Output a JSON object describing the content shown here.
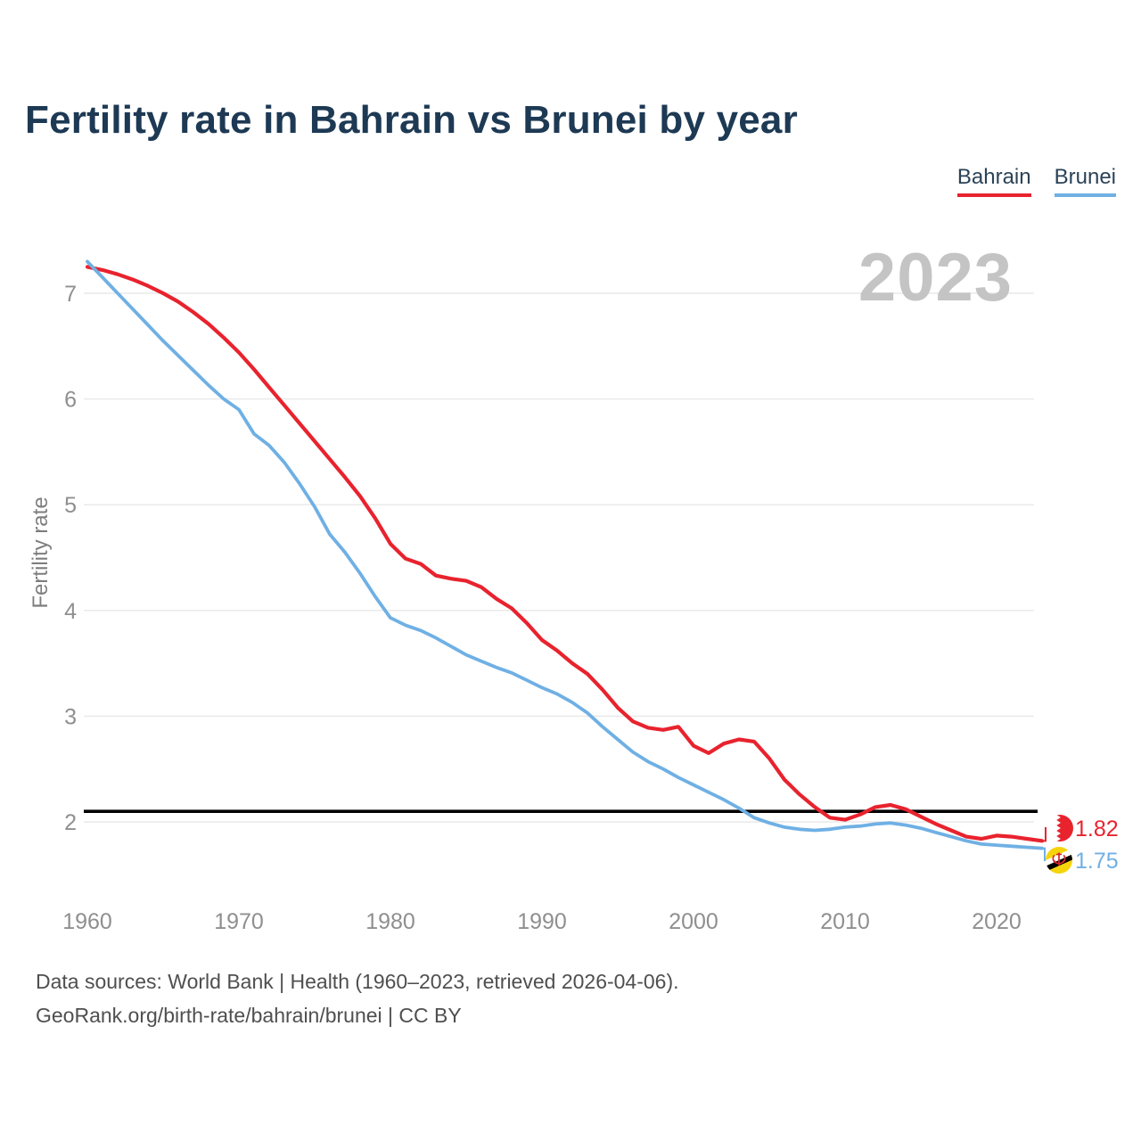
{
  "title": "Fertility rate in Bahrain vs Brunei by year",
  "watermark": "2023",
  "footer": {
    "line1": "Data sources: World Bank | Health (1960–2023, retrieved 2026-04-06).",
    "line2": "GeoRank.org/birth-rate/bahrain/brunei | CC BY"
  },
  "chart_data": {
    "type": "line",
    "title": "Fertility rate in Bahrain vs Brunei by year",
    "ylabel": "Fertility rate",
    "xlabel": "",
    "x_start": 1960,
    "x_end": 2023,
    "x_step": 1,
    "xticks": [
      1960,
      1970,
      1980,
      1990,
      2000,
      2010,
      2020
    ],
    "yticks": [
      2,
      3,
      4,
      5,
      6,
      7
    ],
    "ylim": [
      1.6,
      7.45
    ],
    "grid": "horizontal",
    "legend_position": "top-right",
    "reference_line": {
      "value": 2.1,
      "color": "#000000"
    },
    "colors": {
      "title": "#1d3954",
      "ticks": "#8f8f8f",
      "gridline": "#e8e8e8",
      "watermark": "#c4c4c4",
      "footer": "#4f4f4f"
    },
    "series": [
      {
        "name": "Bahrain",
        "color": "#e8232e",
        "end_label": "1.82",
        "values": [
          7.25,
          7.22,
          7.18,
          7.13,
          7.07,
          7.0,
          6.92,
          6.82,
          6.71,
          6.58,
          6.44,
          6.28,
          6.11,
          5.94,
          5.77,
          5.6,
          5.43,
          5.26,
          5.08,
          4.87,
          4.63,
          4.49,
          4.44,
          4.33,
          4.3,
          4.28,
          4.22,
          4.11,
          4.02,
          3.88,
          3.72,
          3.62,
          3.5,
          3.4,
          3.25,
          3.08,
          2.95,
          2.89,
          2.87,
          2.9,
          2.72,
          2.65,
          2.74,
          2.78,
          2.76,
          2.6,
          2.4,
          2.26,
          2.14,
          2.04,
          2.02,
          2.07,
          2.14,
          2.16,
          2.12,
          2.05,
          1.98,
          1.92,
          1.86,
          1.84,
          1.87,
          1.86,
          1.84,
          1.82
        ]
      },
      {
        "name": "Brunei",
        "color": "#6fb0e4",
        "end_label": "1.75",
        "values": [
          7.3,
          7.15,
          7.0,
          6.85,
          6.7,
          6.55,
          6.41,
          6.27,
          6.13,
          6.0,
          5.9,
          5.67,
          5.56,
          5.4,
          5.2,
          4.98,
          4.72,
          4.55,
          4.35,
          4.13,
          3.93,
          3.86,
          3.81,
          3.74,
          3.66,
          3.58,
          3.52,
          3.46,
          3.41,
          3.34,
          3.27,
          3.21,
          3.13,
          3.03,
          2.9,
          2.78,
          2.66,
          2.57,
          2.5,
          2.42,
          2.35,
          2.28,
          2.21,
          2.13,
          2.04,
          1.99,
          1.95,
          1.93,
          1.92,
          1.93,
          1.95,
          1.96,
          1.98,
          1.99,
          1.97,
          1.94,
          1.9,
          1.86,
          1.82,
          1.79,
          1.78,
          1.77,
          1.76,
          1.75
        ]
      }
    ]
  }
}
